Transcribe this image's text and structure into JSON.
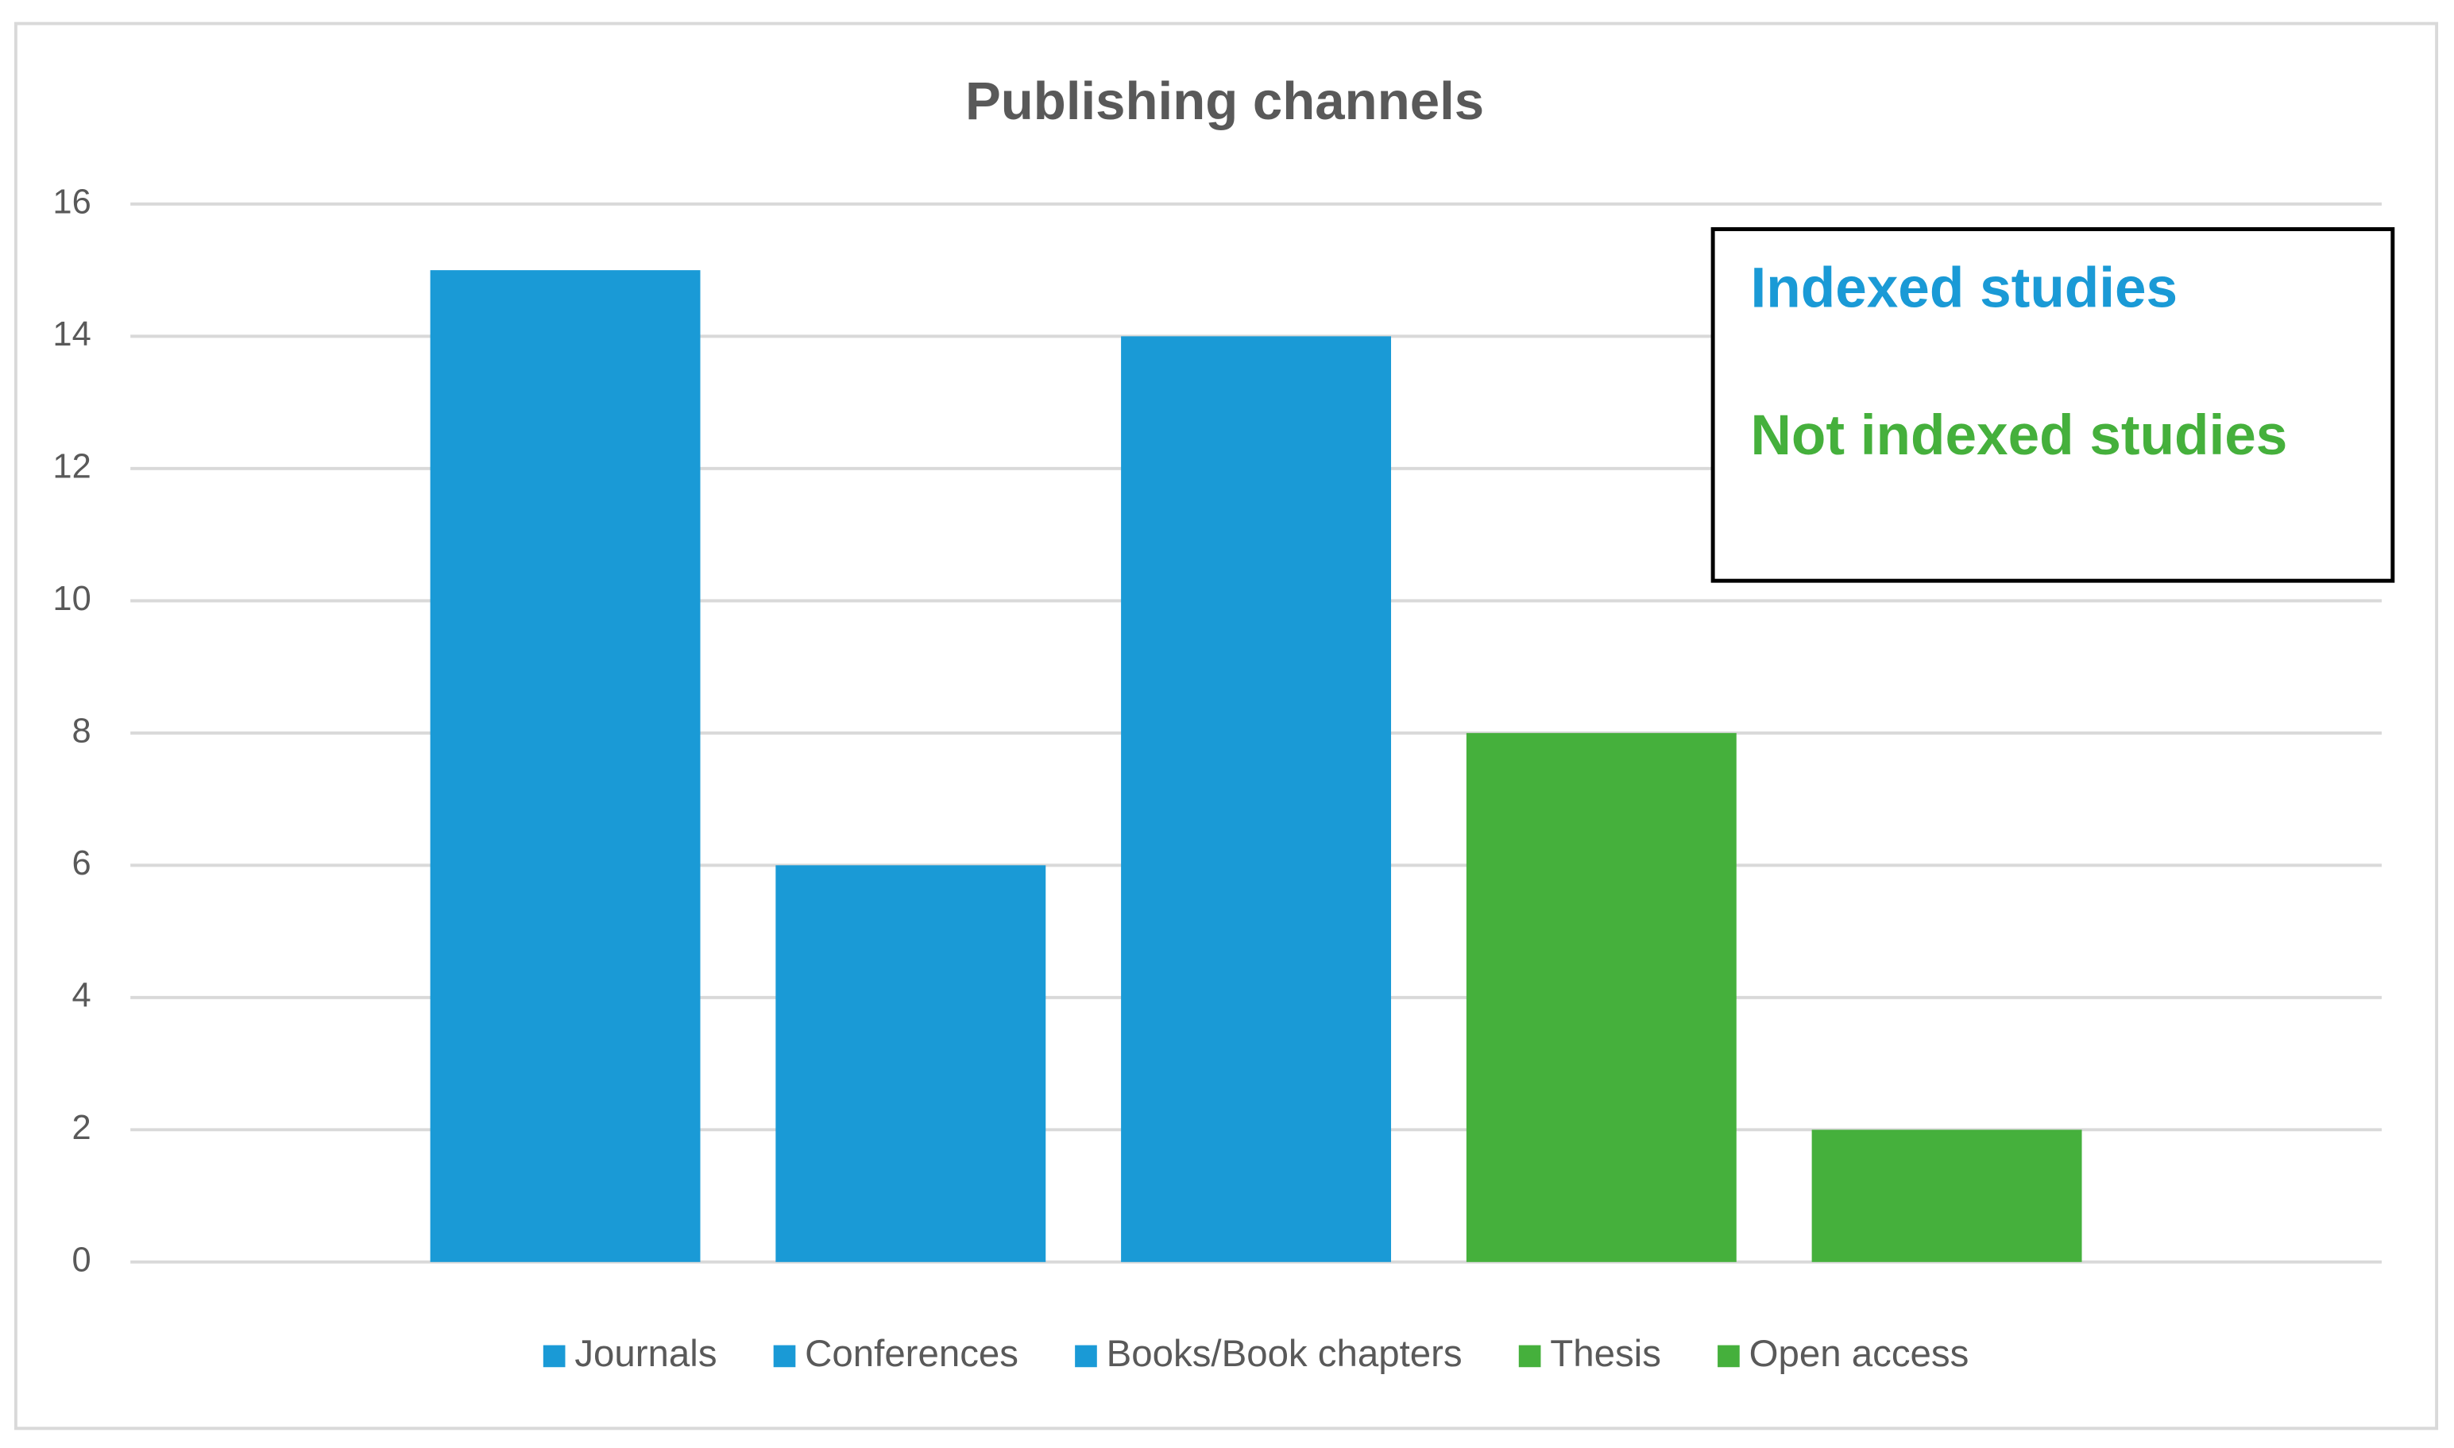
{
  "chart_data": {
    "type": "bar",
    "title": "Publishing  channels",
    "categories": [
      null
    ],
    "series": [
      {
        "name": "Journals",
        "color": "#1a9ad6",
        "values": [
          15
        ]
      },
      {
        "name": "Conferences",
        "color": "#1a9ad6",
        "values": [
          6
        ]
      },
      {
        "name": "Books/Book chapters",
        "color": "#1a9ad6",
        "values": [
          14
        ]
      },
      {
        "name": "Thesis",
        "color": "#45b03c",
        "values": [
          8
        ]
      },
      {
        "name": "Open access",
        "color": "#45b03c",
        "values": [
          2
        ]
      }
    ],
    "ylim": [
      0,
      16
    ],
    "yticks": [
      0,
      2,
      4,
      6,
      8,
      10,
      12,
      14,
      16
    ],
    "grid": true,
    "legend": "bottom",
    "annotations": [
      {
        "text": "Indexed studies",
        "color": "#1a9ad6"
      },
      {
        "text": "Not indexed studies",
        "color": "#45b03c"
      }
    ]
  }
}
